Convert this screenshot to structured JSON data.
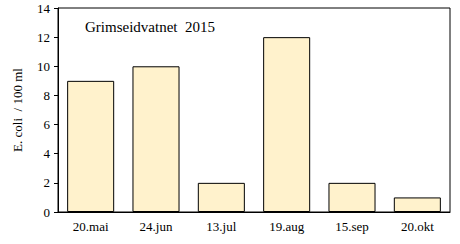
{
  "chart_data": {
    "type": "bar",
    "title": "Grimseidvatnet  2015",
    "ylabel": "E. coli  / 100 ml",
    "categories": [
      "20.mai",
      "24.jun",
      "13.jul",
      "19.aug",
      "15.sep",
      "20.okt"
    ],
    "values": [
      9,
      10,
      2,
      12,
      2,
      1
    ],
    "color": "#fff2cc",
    "ylim": [
      0,
      14
    ],
    "yticks": [
      0,
      2,
      4,
      6,
      8,
      10,
      12,
      14
    ],
    "grid": false
  }
}
